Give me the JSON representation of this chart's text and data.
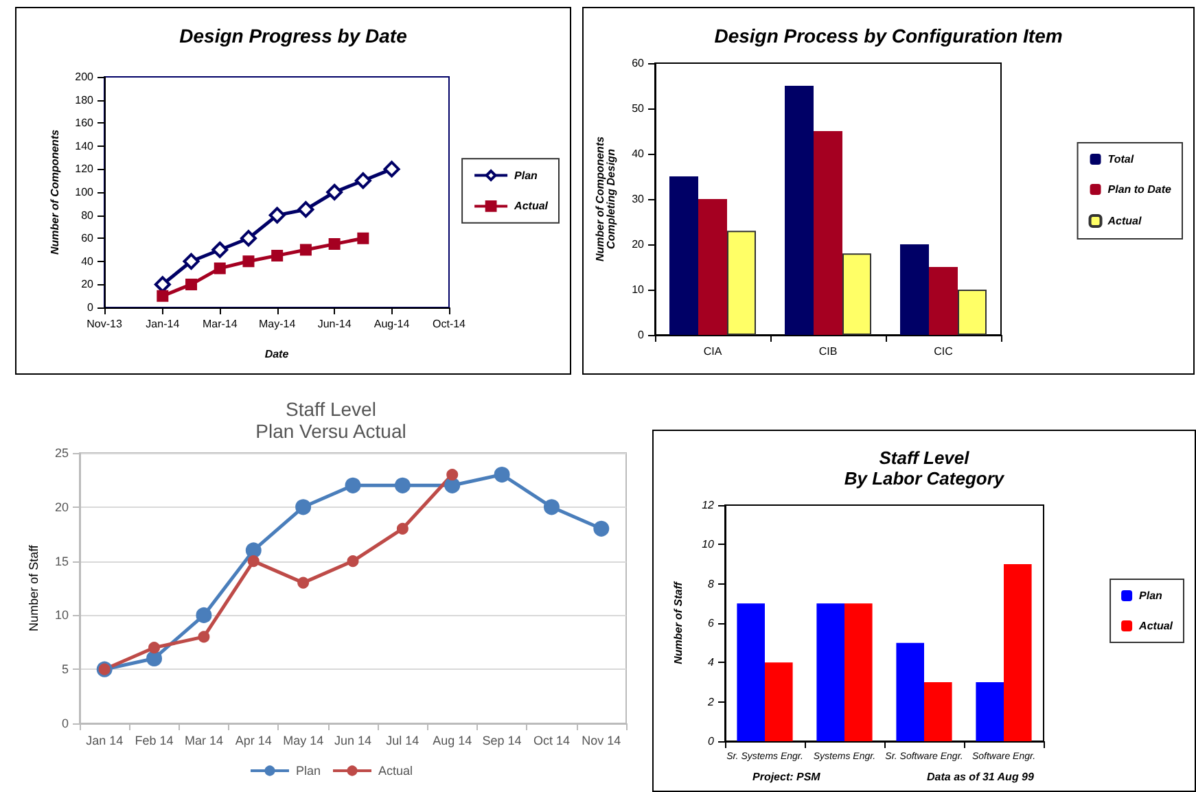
{
  "chart_data": [
    {
      "type": "line",
      "title": "Design Progress by Date",
      "xlabel": "Date",
      "ylabel": "Number of Components",
      "x": [
        "2014-01-01",
        "2014-01-31",
        "2014-03-02",
        "2014-04-01",
        "2014-05-01",
        "2014-05-31",
        "2014-06-30",
        "2014-07-30",
        "2014-08-29"
      ],
      "series": [
        {
          "name": "Plan",
          "color": "#000066",
          "marker": "diamond",
          "values": [
            20,
            40,
            50,
            60,
            80,
            85,
            100,
            110,
            120
          ]
        },
        {
          "name": "Actual",
          "color": "#a50021",
          "marker": "square",
          "values": [
            10,
            20,
            34,
            40,
            45,
            50,
            55,
            60,
            null
          ]
        }
      ],
      "xlim": [
        "2013-11-01",
        "2014-10-28"
      ],
      "xticks": [
        {
          "value": "2013-11-01",
          "label": "Nov-13"
        },
        {
          "value": "2014-01-01",
          "label": "Jan-14"
        },
        {
          "value": "2014-03-02",
          "label": "Mar-14"
        },
        {
          "value": "2014-05-01",
          "label": "May-14"
        },
        {
          "value": "2014-06-30",
          "label": "Jun-14"
        },
        {
          "value": "2014-08-29",
          "label": "Aug-14"
        },
        {
          "value": "2014-10-28",
          "label": "Oct-14"
        }
      ],
      "ylim": [
        0,
        200
      ],
      "yticks": [
        0,
        20,
        40,
        60,
        80,
        100,
        120,
        140,
        160,
        180,
        200
      ],
      "grid": false,
      "legend": "right",
      "line_style": "solid"
    },
    {
      "type": "bar",
      "title": "Design Process by Configuration Item",
      "ylabel": "Number of Components\nCompleting Design",
      "categories": [
        "CIA",
        "CIB",
        "CIC"
      ],
      "series": [
        {
          "name": "Total",
          "color": "#000066",
          "values": [
            35,
            55,
            20
          ]
        },
        {
          "name": "Plan to Date",
          "color": "#a50021",
          "values": [
            30,
            45,
            15
          ]
        },
        {
          "name": "Actual",
          "color": "#ffff66",
          "values": [
            23,
            18,
            10
          ]
        }
      ],
      "ylim": [
        0,
        60
      ],
      "yticks": [
        0,
        10,
        20,
        30,
        40,
        50,
        60
      ],
      "grid": false,
      "legend": "right"
    },
    {
      "type": "line",
      "title": "Staff Level",
      "subtitle": "Plan Versu Actual",
      "ylabel": "Number of Staff",
      "categories": [
        "Jan 14",
        "Feb 14",
        "Mar 14",
        "Apr 14",
        "May 14",
        "Jun 14",
        "Jul 14",
        "Aug 14",
        "Sep 14",
        "Oct 14",
        "Nov 14"
      ],
      "series": [
        {
          "name": "Plan",
          "color": "#4a7ebb",
          "values": [
            5,
            6,
            10,
            16,
            20,
            22,
            22,
            22,
            23,
            20,
            18
          ]
        },
        {
          "name": "Actual",
          "color": "#be4b48",
          "values": [
            5,
            7,
            8,
            15,
            13,
            15,
            18,
            23,
            null,
            null,
            null
          ]
        }
      ],
      "ylim": [
        0,
        25
      ],
      "yticks": [
        0,
        5,
        10,
        15,
        20,
        25
      ],
      "grid": "y",
      "legend": "bottom",
      "marker": "circle",
      "line_style": "solid"
    },
    {
      "type": "bar",
      "title": "Staff Level",
      "subtitle": "By Labor Category",
      "ylabel": "Number of Staff",
      "categories": [
        "Sr. Systems Engr.",
        "Systems Engr.",
        "Sr. Software Engr.",
        "Software Engr."
      ],
      "series": [
        {
          "name": "Plan",
          "color": "#0000ff",
          "values": [
            7,
            7,
            5,
            3
          ]
        },
        {
          "name": "Actual",
          "color": "#ff0000",
          "values": [
            4,
            7,
            3,
            9
          ]
        }
      ],
      "ylim": [
        0,
        12
      ],
      "yticks": [
        0,
        2,
        4,
        6,
        8,
        10,
        12
      ],
      "grid": false,
      "legend": "right",
      "annotations": [
        "Project: PSM",
        "Data as of 31 Aug 99"
      ]
    }
  ]
}
